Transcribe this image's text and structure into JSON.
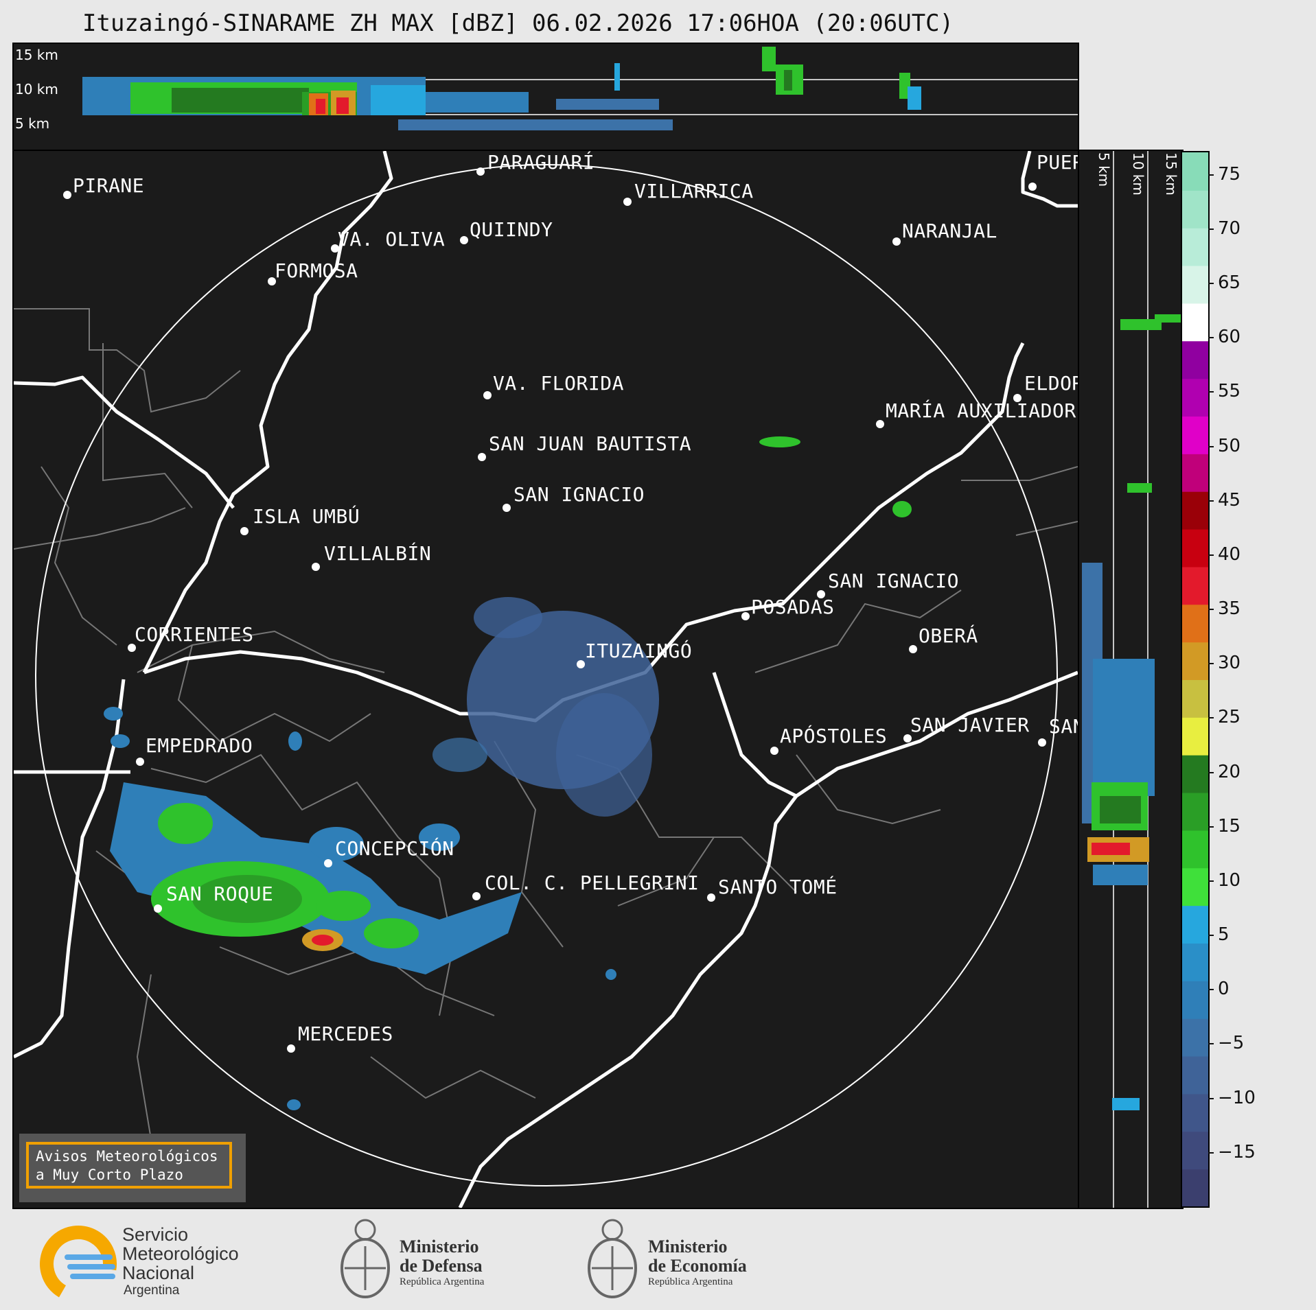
{
  "title": "Ituzaingó-SINARAME ZH MAX [dBZ] 06.02.2026 17:06HOA (20:06UTC)",
  "height_labels": [
    "15 km",
    "10 km",
    "5 km"
  ],
  "cities": [
    {
      "name": "PIRANE"
    },
    {
      "name": "PARAGUARÍ"
    },
    {
      "name": "VILLARRICA"
    },
    {
      "name": "PUER"
    },
    {
      "name": "VA. OLIVA"
    },
    {
      "name": "QUIINDY"
    },
    {
      "name": "NARANJAL"
    },
    {
      "name": "FORMOSA"
    },
    {
      "name": "VA. FLORIDA"
    },
    {
      "name": "ELDOR"
    },
    {
      "name": "MARÍA AUXILIADOR"
    },
    {
      "name": "SAN JUAN BAUTISTA"
    },
    {
      "name": "SAN IGNACIO"
    },
    {
      "name": "ISLA UMBÚ"
    },
    {
      "name": "VILLALBÍN"
    },
    {
      "name": "SAN IGNACIO"
    },
    {
      "name": "POSADAS"
    },
    {
      "name": "CORRIENTES"
    },
    {
      "name": "ITUZAINGÓ"
    },
    {
      "name": "OBERÁ"
    },
    {
      "name": "APÓSTOLES"
    },
    {
      "name": "SAN JAVIER"
    },
    {
      "name": "SAN"
    },
    {
      "name": "EMPEDRADO"
    },
    {
      "name": "CONCEPCIÓN"
    },
    {
      "name": "SAN ROQUE"
    },
    {
      "name": "COL. C. PELLEGRINI"
    },
    {
      "name": "SANTO TOMÉ"
    },
    {
      "name": "MERCEDES"
    }
  ],
  "colorbar": {
    "ticks": [
      "75",
      "70",
      "65",
      "60",
      "55",
      "50",
      "45",
      "40",
      "35",
      "30",
      "25",
      "20",
      "15",
      "10",
      "5",
      "0",
      "−5",
      "−10",
      "−15"
    ],
    "min": -20,
    "max": 77,
    "colors": [
      "#3b3f6e",
      "#3f4a7c",
      "#40568a",
      "#3f6398",
      "#3c72a8",
      "#2f7fb8",
      "#2a8fc8",
      "#26a7de",
      "#3fe03a",
      "#2fc22c",
      "#2a9e26",
      "#247a20",
      "#e8ee40",
      "#c8c040",
      "#d29a25",
      "#e07018",
      "#e31a2c",
      "#c80010",
      "#9a0008",
      "#c0007a",
      "#e000c8",
      "#b000b0",
      "#9000a0",
      "#ffffff",
      "#d8f4e8",
      "#b8ecd8",
      "#a0e4c8",
      "#88dcb8"
    ]
  },
  "warning": {
    "line1": "Avisos Meteorológicos",
    "line2": "a Muy Corto Plazo"
  },
  "logos": {
    "smn": {
      "line1": "Servicio",
      "line2": "Meteorológico",
      "line3": "Nacional",
      "line4": "Argentina"
    },
    "defensa": {
      "line1": "Ministerio",
      "line2": "de Defensa",
      "line3": "República Argentina"
    },
    "economia": {
      "line1": "Ministerio",
      "line2": "de Economía",
      "line3": "República Argentina"
    }
  }
}
